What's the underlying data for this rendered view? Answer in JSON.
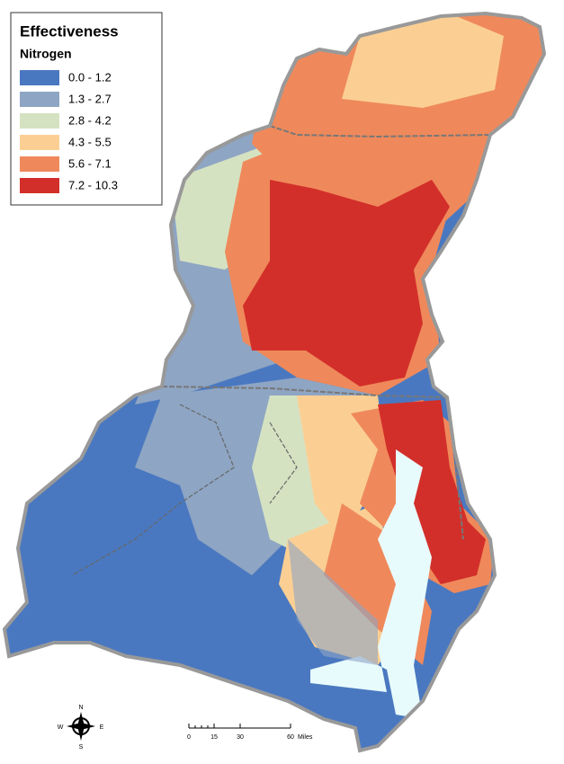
{
  "legend": {
    "title": "Effectiveness",
    "subtitle": "Nitrogen",
    "items": [
      {
        "label": "0.0 - 1.2",
        "color": "#4a78c0"
      },
      {
        "label": "1.3 - 2.7",
        "color": "#8ea5c4"
      },
      {
        "label": "2.8 - 4.2",
        "color": "#d5e2c2"
      },
      {
        "label": "4.3 - 5.5",
        "color": "#fbcf94"
      },
      {
        "label": "5.6 - 7.1",
        "color": "#ef895b"
      },
      {
        "label": "7.2 - 10.3",
        "color": "#d32f2a"
      }
    ]
  },
  "compass": {
    "north": "N",
    "south": "S",
    "east": "E",
    "west": "W"
  },
  "scale_bar": {
    "labels": [
      "0",
      "15",
      "30",
      "60"
    ],
    "units": "Miles"
  }
}
